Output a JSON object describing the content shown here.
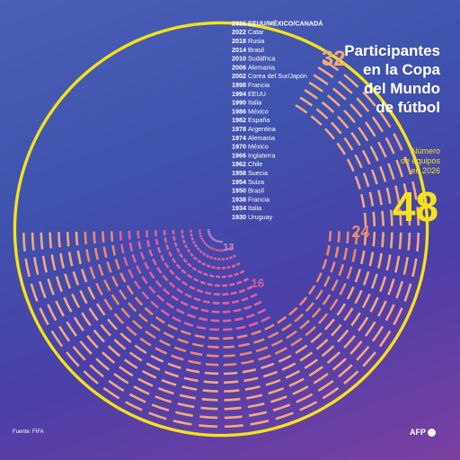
{
  "title_lines": [
    "Participantes",
    "en la Copa",
    "del Mundo",
    "de fútbol"
  ],
  "teams_label_lines": [
    "Número",
    "de equipos",
    "en 2026"
  ],
  "big_number": "48",
  "source": "Fuente: FIFA",
  "logo": "AFP",
  "colors": {
    "c13": "#c88ad0",
    "c16": "#e0609a",
    "c24": "#eb8a6c",
    "c32": "#f2a880",
    "c48": "#f5e21c",
    "accent": "#f5e21c"
  },
  "chart_data": {
    "type": "radial-bar",
    "title": "Participantes en la Copa del Mundo de fútbol",
    "series": [
      {
        "year": "1930",
        "host": "Uruguay",
        "teams": 13
      },
      {
        "year": "1934",
        "host": "Italia",
        "teams": 16
      },
      {
        "year": "1938",
        "host": "Francia",
        "teams": 16
      },
      {
        "year": "1950",
        "host": "Brasil",
        "teams": 16
      },
      {
        "year": "1954",
        "host": "Suiza",
        "teams": 16
      },
      {
        "year": "1958",
        "host": "Suecia",
        "teams": 16
      },
      {
        "year": "1962",
        "host": "Chile",
        "teams": 16
      },
      {
        "year": "1966",
        "host": "Inglaterra",
        "teams": 16
      },
      {
        "year": "1970",
        "host": "México",
        "teams": 16
      },
      {
        "year": "1974",
        "host": "Alemania",
        "teams": 16
      },
      {
        "year": "1978",
        "host": "Argentina",
        "teams": 16
      },
      {
        "year": "1982",
        "host": "España",
        "teams": 24
      },
      {
        "year": "1986",
        "host": "México",
        "teams": 24
      },
      {
        "year": "1990",
        "host": "Italia",
        "teams": 24
      },
      {
        "year": "1994",
        "host": "EEUU",
        "teams": 24
      },
      {
        "year": "1998",
        "host": "Francia",
        "teams": 32
      },
      {
        "year": "2002",
        "host": "Corea del Sur/Japón",
        "teams": 32
      },
      {
        "year": "2006",
        "host": "Alemania",
        "teams": 32
      },
      {
        "year": "2010",
        "host": "Sudáfrica",
        "teams": 32
      },
      {
        "year": "2014",
        "host": "Brasil",
        "teams": 32
      },
      {
        "year": "2018",
        "host": "Rusia",
        "teams": 32
      },
      {
        "year": "2022",
        "host": "Catar",
        "teams": 32
      },
      {
        "year": "2026",
        "host": "EEUU/MÉXICO/CANADÁ",
        "teams": 48
      }
    ],
    "value_labels": [
      "13",
      "16",
      "24",
      "32"
    ]
  }
}
